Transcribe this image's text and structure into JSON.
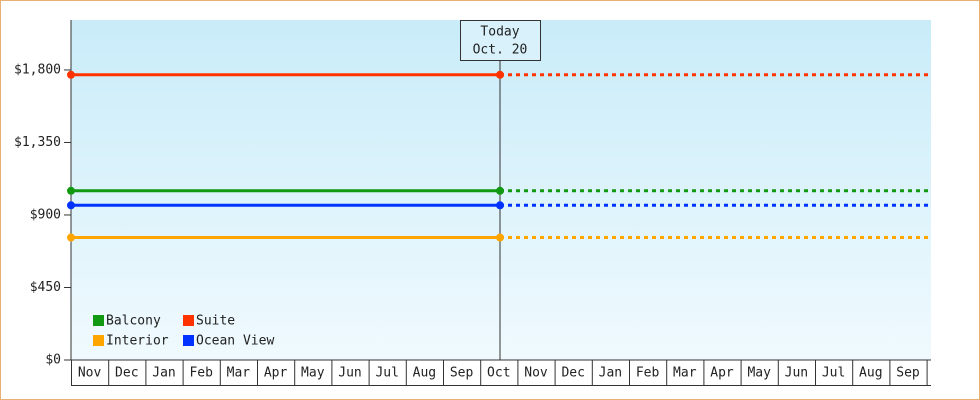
{
  "chart_data": {
    "type": "line",
    "categories": [
      "Nov",
      "Dec",
      "Jan",
      "Feb",
      "Mar",
      "Apr",
      "May",
      "Jun",
      "Jul",
      "Aug",
      "Sep",
      "Oct",
      "Nov",
      "Dec",
      "Jan",
      "Feb",
      "Mar",
      "Apr",
      "May",
      "Jun",
      "Jul",
      "Aug",
      "Sep"
    ],
    "series": [
      {
        "name": "Balcony",
        "color": "#119911",
        "value": 1050
      },
      {
        "name": "Suite",
        "color": "#ff3300",
        "value": 1770
      },
      {
        "name": "Interior",
        "color": "#ffa500",
        "value": 760
      },
      {
        "name": "Ocean View",
        "color": "#0033ff",
        "value": 960
      }
    ],
    "ylim": [
      0,
      2110
    ],
    "yticks": [
      {
        "value": 0,
        "label": "$0"
      },
      {
        "value": 450,
        "label": "$450"
      },
      {
        "value": 900,
        "label": "$900"
      },
      {
        "value": 1350,
        "label": "$1,350"
      },
      {
        "value": 1800,
        "label": "$1,800"
      }
    ],
    "annotation": {
      "title": "Today",
      "date": "Oct. 20"
    }
  }
}
